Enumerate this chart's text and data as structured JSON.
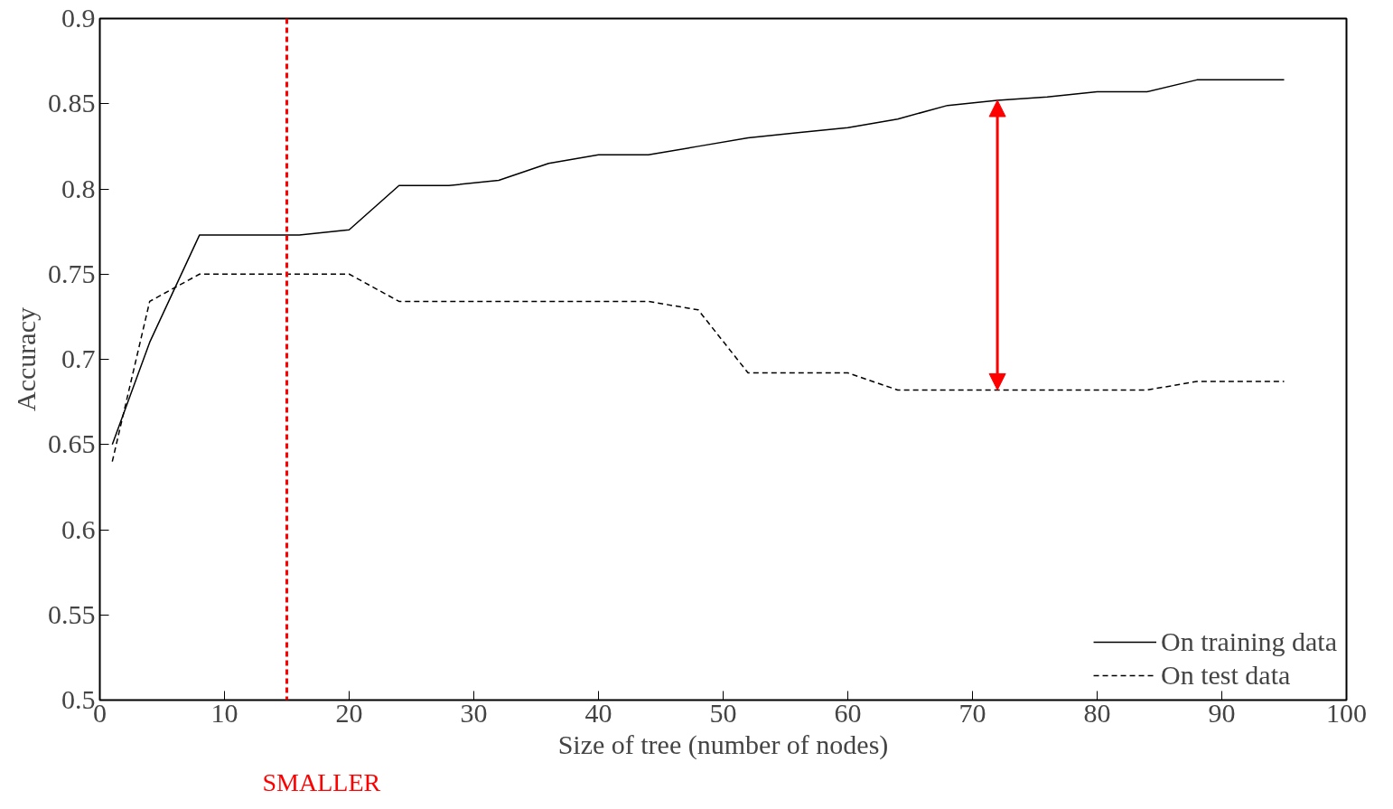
{
  "chart_data": {
    "type": "line",
    "xlabel": "Size of tree (number of nodes)",
    "ylabel": "Accuracy",
    "xlim": [
      0,
      100
    ],
    "xticks": [
      0,
      10,
      20,
      30,
      40,
      50,
      60,
      70,
      80,
      90,
      100
    ],
    "ylim": [
      0.5,
      0.9
    ],
    "yticks": [
      0.5,
      0.55,
      0.6,
      0.65,
      0.7,
      0.75,
      0.8,
      0.85,
      0.9
    ],
    "grid": false,
    "legend": "bottom right",
    "series": [
      {
        "name": "On training data",
        "color": "#000000",
        "line_style": "solid",
        "x": [
          1,
          4,
          8,
          16,
          20,
          24,
          28,
          32,
          36,
          40,
          44,
          48,
          52,
          56,
          60,
          64,
          68,
          72,
          76,
          80,
          84,
          88,
          95
        ],
        "values": [
          0.65,
          0.71,
          0.773,
          0.773,
          0.776,
          0.802,
          0.802,
          0.805,
          0.815,
          0.82,
          0.82,
          0.825,
          0.83,
          0.833,
          0.836,
          0.841,
          0.849,
          0.852,
          0.854,
          0.857,
          0.857,
          0.864,
          0.864
        ]
      },
      {
        "name": "On test data",
        "color": "#000000",
        "line_style": "dashed",
        "x": [
          1,
          4,
          8,
          20,
          24,
          44,
          48,
          52,
          60,
          64,
          84,
          88,
          95
        ],
        "values": [
          0.64,
          0.734,
          0.75,
          0.75,
          0.734,
          0.734,
          0.729,
          0.692,
          0.692,
          0.682,
          0.682,
          0.687,
          0.687
        ]
      }
    ],
    "ref_lines": [
      {
        "axis": "x",
        "value": 15,
        "label": null,
        "color": "#ff0000",
        "line_style": "dashed"
      }
    ],
    "annotations": [
      "SMALLER"
    ]
  }
}
